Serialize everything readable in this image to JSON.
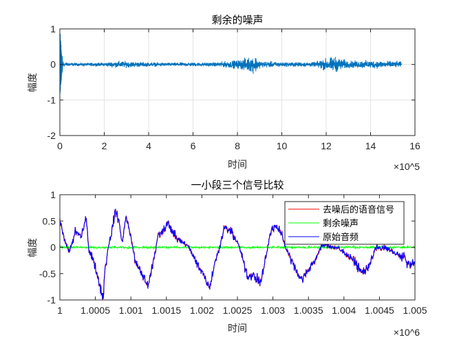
{
  "chart_data": [
    {
      "type": "line",
      "title": "剩余的噪声",
      "xlabel": "时间",
      "ylabel": "幅度",
      "x_exponent": "×10^5",
      "xlim": [
        0,
        16
      ],
      "ylim": [
        -2,
        1
      ],
      "xticks": [
        0,
        2,
        4,
        6,
        8,
        10,
        12,
        14,
        16
      ],
      "yticks": [
        1,
        0,
        -1,
        -2
      ],
      "grid": true,
      "series": [
        {
          "color": "#0072BD",
          "description_of_envelope": "amplitude envelope of the noise signal vs x (×10^5)",
          "envelope_x": [
            0,
            0.05,
            0.1,
            0.2,
            0.5,
            2,
            2.7,
            4,
            5,
            7,
            8,
            8.8,
            9,
            10,
            11.5,
            11.8,
            12.4,
            13,
            14,
            15.4
          ],
          "envelope_amp": [
            1.0,
            0.6,
            0.25,
            0.08,
            0.05,
            0.06,
            0.12,
            0.07,
            0.06,
            0.07,
            0.15,
            0.3,
            0.12,
            0.08,
            0.08,
            0.18,
            0.27,
            0.12,
            0.14,
            0.1
          ]
        }
      ]
    },
    {
      "type": "line",
      "title": "一小段三个信号比较",
      "xlabel": "时间",
      "ylabel": "幅度",
      "x_exponent": "×10^6",
      "xlim": [
        1,
        1.005
      ],
      "ylim": [
        -1,
        1
      ],
      "xticks": [
        "1",
        "1.0005",
        "1.001",
        "1.0015",
        "1.002",
        "1.0025",
        "1.003",
        "1.0035",
        "1.004",
        "1.0045",
        "1.005"
      ],
      "yticks": [
        "1",
        "0.5",
        "0",
        "-0.5",
        "-1"
      ],
      "grid": false,
      "legend": "top-right",
      "x": [
        1.0,
        1.00008,
        1.00013,
        1.00022,
        1.0003,
        1.00037,
        1.00041,
        1.00049,
        1.00056,
        1.00061,
        1.00063,
        1.00068,
        1.00073,
        1.00078,
        1.00083,
        1.00088,
        1.00093,
        1.00098,
        1.00107,
        1.00119,
        1.00124,
        1.00131,
        1.00138,
        1.00153,
        1.00163,
        1.00182,
        1.00192,
        1.00202,
        1.00211,
        1.00218,
        1.00225,
        1.00232,
        1.0024,
        1.0025,
        1.00255,
        1.00264,
        1.00274,
        1.00283,
        1.00297,
        1.00304,
        1.00311,
        1.00318,
        1.00328,
        1.0034,
        1.00357,
        1.00367,
        1.00374,
        1.00392,
        1.00412,
        1.00422,
        1.0043,
        1.00437,
        1.00445,
        1.00456,
        1.00485,
        1.00493,
        1.005
      ],
      "series": [
        {
          "name": "去噪后的语音信号",
          "color": "#FF0000"
        },
        {
          "name": "剩余噪声",
          "color": "#00FF00",
          "level": 0,
          "amplitude": 0.03
        },
        {
          "name": "原始音频",
          "color": "#0000FF",
          "values": [
            0.55,
            0.1,
            -0.1,
            0.3,
            0.2,
            0.55,
            -0.1,
            -0.3,
            -0.75,
            -0.95,
            -0.5,
            0.0,
            0.3,
            0.7,
            0.5,
            0.1,
            0.55,
            0.3,
            -0.3,
            -0.6,
            -0.75,
            -0.3,
            0.2,
            0.45,
            0.2,
            0.0,
            -0.3,
            -0.5,
            -0.75,
            -0.3,
            0.0,
            0.4,
            0.3,
            0.1,
            -0.1,
            -0.55,
            -0.55,
            -0.67,
            0.3,
            0.43,
            0.3,
            0.0,
            -0.3,
            -0.62,
            -0.3,
            0.0,
            0.05,
            -0.02,
            -0.2,
            -0.45,
            -0.45,
            -0.3,
            0.0,
            0.0,
            -0.2,
            -0.35,
            -0.25
          ]
        }
      ]
    }
  ]
}
